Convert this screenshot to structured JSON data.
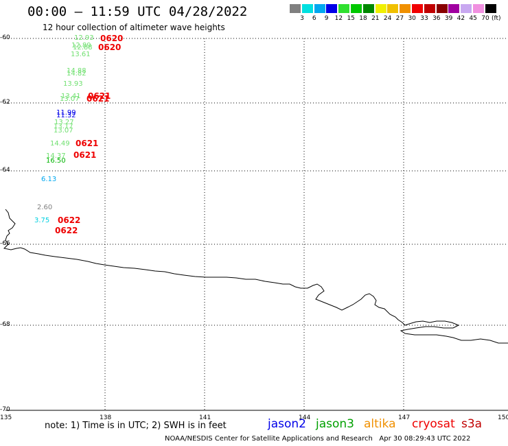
{
  "header": {
    "title": "00:00 – 11:59 UTC 04/28/2022",
    "subtitle": "12 hour collection of altimeter wave heights"
  },
  "color_scale": {
    "unit": "(ft)",
    "bins": [
      {
        "label": "3",
        "color": "#808080"
      },
      {
        "label": "6",
        "color": "#00e0e0"
      },
      {
        "label": "9",
        "color": "#00a8f0"
      },
      {
        "label": "12",
        "color": "#0000e8"
      },
      {
        "label": "15",
        "color": "#30e030"
      },
      {
        "label": "18",
        "color": "#00c800"
      },
      {
        "label": "21",
        "color": "#008800"
      },
      {
        "label": "24",
        "color": "#f0f000"
      },
      {
        "label": "27",
        "color": "#f0c000"
      },
      {
        "label": "30",
        "color": "#f09000"
      },
      {
        "label": "33",
        "color": "#f00000"
      },
      {
        "label": "36",
        "color": "#c00000"
      },
      {
        "label": "39",
        "color": "#880000"
      },
      {
        "label": "42",
        "color": "#a000a0"
      },
      {
        "label": "45",
        "color": "#c8a8f0"
      },
      {
        "label": "70",
        "color": "#f090e0"
      },
      {
        "label": "",
        "color": "#000000"
      }
    ]
  },
  "axes": {
    "lat_ticks": [
      "-60",
      "-62",
      "-64",
      "-66",
      "-68",
      "-70"
    ],
    "lon_ticks": [
      "135",
      "138",
      "141",
      "144",
      "147",
      "150"
    ]
  },
  "observations": [
    {
      "value": "12.93",
      "color": "#70e070"
    },
    {
      "value": "12.89",
      "color": "#70e070"
    },
    {
      "value": "12.88",
      "color": "#70e070"
    },
    {
      "value": "13.61",
      "color": "#70e070"
    },
    {
      "value": "14.88",
      "color": "#70e070"
    },
    {
      "value": "14.82",
      "color": "#70e070"
    },
    {
      "value": "13.93",
      "color": "#70e070"
    },
    {
      "value": "13.41",
      "color": "#70e070"
    },
    {
      "value": "13.07",
      "color": "#70e070"
    },
    {
      "value": "11.99",
      "color": "#0000e8"
    },
    {
      "value": "11.32",
      "color": "#0000e8"
    },
    {
      "value": "13.27",
      "color": "#70e070"
    },
    {
      "value": "13.17",
      "color": "#70e070"
    },
    {
      "value": "13.07",
      "color": "#70e070"
    },
    {
      "value": "14.49",
      "color": "#70e070"
    },
    {
      "value": "14.37",
      "color": "#70e070"
    },
    {
      "value": "16.50",
      "color": "#00b400"
    },
    {
      "value": "6.13",
      "color": "#00a8f0"
    },
    {
      "value": "2.60",
      "color": "#808080"
    },
    {
      "value": "3.75",
      "color": "#00d0e0"
    }
  ],
  "pass_times": [
    "0620",
    "0620",
    "0621",
    "0621",
    "0621",
    "0621",
    "0622",
    "0622"
  ],
  "satellites": [
    {
      "name": "jason2",
      "color": "#0000e8"
    },
    {
      "name": "jason3",
      "color": "#00a000"
    },
    {
      "name": "altika",
      "color": "#f09000"
    },
    {
      "name": "cryosat",
      "color": "#ee0000"
    },
    {
      "name": "s3a",
      "color": "#c00000"
    }
  ],
  "footer": {
    "note": "note: 1) Time is in UTC; 2) SWH is in feet",
    "credit": "NOAA/NESDIS Center for Satellite Applications and Research   Apr 30 08:29:43 UTC 2022"
  }
}
